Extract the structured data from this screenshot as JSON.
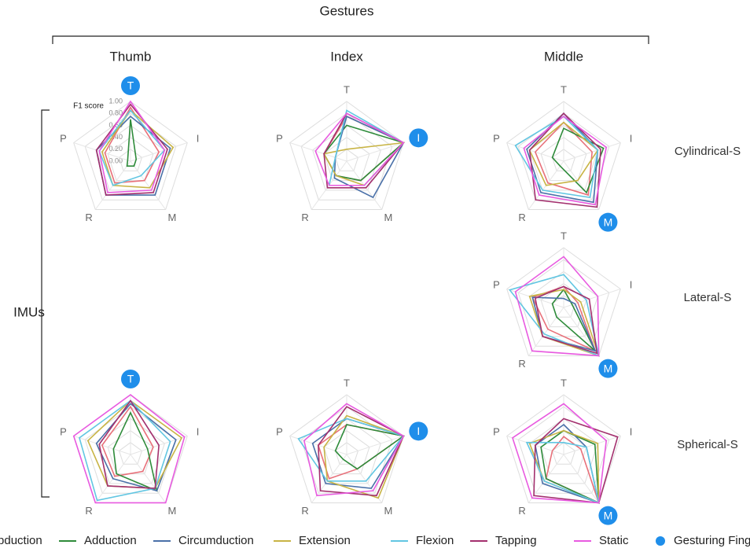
{
  "title": "Gestures",
  "group_label": "IMUs",
  "columns": [
    "Thumb",
    "Index",
    "Middle"
  ],
  "rows": [
    "Cylindrical-S",
    "Lateral-S",
    "Spherical-S"
  ],
  "legend_marker": {
    "name": "Gesturing Finger",
    "color": "#1f8eea"
  },
  "chart_data": [
    {
      "type": "radar",
      "column": "Thumb",
      "row": "Cylindrical-S",
      "axes": [
        "T",
        "I",
        "M",
        "R",
        "P"
      ],
      "gesturing_finger": "T",
      "rlim": [
        0,
        1
      ],
      "rlabel": "F1 score",
      "rticks": [
        {
          "value": 0,
          "label": "0.00"
        },
        {
          "value": 0.2,
          "label": "0.20"
        },
        {
          "value": 0.4,
          "label": "0.40"
        },
        {
          "value": 0.6,
          "label": "0.60"
        },
        {
          "value": 0.8,
          "label": "0.80"
        },
        {
          "value": 1,
          "label": "1.00"
        }
      ],
      "series": [
        {
          "name": "Abduction",
          "color": "#e8707a",
          "values": [
            0.9,
            0.5,
            0.4,
            0.45,
            0.45
          ]
        },
        {
          "name": "Adduction",
          "color": "#2e8b3a",
          "values": [
            0.7,
            0.1,
            0.1,
            0.1,
            0.05
          ]
        },
        {
          "name": "Circumduction",
          "color": "#4a70a8",
          "values": [
            0.75,
            0.7,
            0.7,
            0.7,
            0.6
          ]
        },
        {
          "name": "Extension",
          "color": "#c8b445",
          "values": [
            0.85,
            0.75,
            0.55,
            0.5,
            0.5
          ]
        },
        {
          "name": "Flexion",
          "color": "#62c6e2",
          "values": [
            0.85,
            0.6,
            0.3,
            0.5,
            0.55
          ]
        },
        {
          "name": "Tapping",
          "color": "#a3306e",
          "values": [
            0.95,
            0.65,
            0.65,
            0.7,
            0.6
          ]
        },
        {
          "name": "Static",
          "color": "#e85ae0",
          "values": [
            1.0,
            0.6,
            0.6,
            0.65,
            0.55
          ]
        }
      ]
    },
    {
      "type": "radar",
      "column": "Index",
      "row": "Cylindrical-S",
      "axes": [
        "T",
        "I",
        "M",
        "R",
        "P"
      ],
      "gesturing_finger": "I",
      "rlim": [
        0,
        1
      ],
      "rticks": [
        0,
        0.2,
        0.4,
        0.6,
        0.8,
        1
      ],
      "series": [
        {
          "name": "Abduction",
          "color": "#e8707a",
          "values": [
            0.75,
            1.0,
            0.4,
            0.3,
            0.4
          ]
        },
        {
          "name": "Adduction",
          "color": "#2e8b3a",
          "values": [
            0.6,
            1.0,
            0.4,
            0.3,
            0.4
          ]
        },
        {
          "name": "Circumduction",
          "color": "#4a70a8",
          "values": [
            0.75,
            1.0,
            0.75,
            0.35,
            0.2
          ]
        },
        {
          "name": "Extension",
          "color": "#c8b445",
          "values": [
            0.2,
            1.0,
            0.5,
            0.3,
            0.4
          ]
        },
        {
          "name": "Flexion",
          "color": "#62c6e2",
          "values": [
            0.85,
            1.0,
            0.5,
            0.5,
            0.2
          ]
        },
        {
          "name": "Tapping",
          "color": "#a3306e",
          "values": [
            0.8,
            1.0,
            0.55,
            0.55,
            0.4
          ]
        },
        {
          "name": "Static",
          "color": "#e85ae0",
          "values": [
            0.8,
            1.0,
            0.5,
            0.5,
            0.55
          ]
        }
      ]
    },
    {
      "type": "radar",
      "column": "Middle",
      "row": "Cylindrical-S",
      "axes": [
        "T",
        "I",
        "M",
        "R",
        "P"
      ],
      "gesturing_finger": "M",
      "rlim": [
        0,
        1
      ],
      "rticks": [
        0,
        0.2,
        0.4,
        0.6,
        0.8,
        1
      ],
      "series": [
        {
          "name": "Abduction",
          "color": "#e8707a",
          "values": [
            0.65,
            0.5,
            0.7,
            0.45,
            0.5
          ]
        },
        {
          "name": "Adduction",
          "color": "#2e8b3a",
          "values": [
            0.55,
            0.7,
            0.65,
            0.1,
            0.2
          ]
        },
        {
          "name": "Circumduction",
          "color": "#4a70a8",
          "values": [
            0.8,
            0.6,
            0.85,
            0.65,
            0.65
          ]
        },
        {
          "name": "Extension",
          "color": "#c8b445",
          "values": [
            0.65,
            0.6,
            0.4,
            0.5,
            0.6
          ]
        },
        {
          "name": "Flexion",
          "color": "#62c6e2",
          "values": [
            0.75,
            0.6,
            0.75,
            0.6,
            0.85
          ]
        },
        {
          "name": "Tapping",
          "color": "#a3306e",
          "values": [
            0.8,
            0.65,
            0.95,
            0.8,
            0.6
          ]
        },
        {
          "name": "Static",
          "color": "#e85ae0",
          "values": [
            0.75,
            0.75,
            0.9,
            0.7,
            0.7
          ]
        }
      ]
    },
    {
      "type": "radar",
      "column": "Middle",
      "row": "Lateral-S",
      "axes": [
        "T",
        "I",
        "M",
        "R",
        "P"
      ],
      "gesturing_finger": "M",
      "rlim": [
        0,
        1
      ],
      "rticks": [
        0,
        0.2,
        0.4,
        0.6,
        0.8,
        1
      ],
      "series": [
        {
          "name": "Abduction",
          "color": "#e8707a",
          "values": [
            0.35,
            0.25,
            0.9,
            0.45,
            0.55
          ]
        },
        {
          "name": "Adduction",
          "color": "#2e8b3a",
          "values": [
            0.3,
            0.15,
            0.9,
            0.2,
            0.2
          ]
        },
        {
          "name": "Circumduction",
          "color": "#4a70a8",
          "values": [
            0.15,
            0.2,
            0.9,
            0.6,
            0.55
          ]
        },
        {
          "name": "Extension",
          "color": "#c8b445",
          "values": [
            0.3,
            0.3,
            1.0,
            0.6,
            0.6
          ]
        },
        {
          "name": "Flexion",
          "color": "#62c6e2",
          "values": [
            0.55,
            0.4,
            1.0,
            0.55,
            0.95
          ]
        },
        {
          "name": "Tapping",
          "color": "#a3306e",
          "values": [
            0.35,
            0.45,
            0.95,
            0.6,
            0.5
          ]
        },
        {
          "name": "Static",
          "color": "#e85ae0",
          "values": [
            0.85,
            0.6,
            1.0,
            0.9,
            0.85
          ]
        }
      ]
    },
    {
      "type": "radar",
      "column": "Thumb",
      "row": "Spherical-S",
      "axes": [
        "T",
        "I",
        "M",
        "R",
        "P"
      ],
      "gesturing_finger": "T",
      "rlim": [
        0,
        1
      ],
      "rticks": [
        0,
        0.2,
        0.4,
        0.6,
        0.8,
        1
      ],
      "series": [
        {
          "name": "Abduction",
          "color": "#e8707a",
          "values": [
            0.8,
            0.4,
            0.35,
            0.45,
            0.5
          ]
        },
        {
          "name": "Adduction",
          "color": "#2e8b3a",
          "values": [
            0.7,
            0.3,
            0.75,
            0.4,
            0.3
          ]
        },
        {
          "name": "Circumduction",
          "color": "#4a70a8",
          "values": [
            0.85,
            0.8,
            0.75,
            0.5,
            0.6
          ]
        },
        {
          "name": "Extension",
          "color": "#c8b445",
          "values": [
            0.9,
            0.9,
            0.7,
            0.65,
            0.75
          ]
        },
        {
          "name": "Flexion",
          "color": "#62c6e2",
          "values": [
            0.9,
            0.7,
            0.7,
            0.95,
            0.9
          ]
        },
        {
          "name": "Tapping",
          "color": "#a3306e",
          "values": [
            0.9,
            0.5,
            0.7,
            0.65,
            0.55
          ]
        },
        {
          "name": "Static",
          "color": "#e85ae0",
          "values": [
            1.0,
            0.95,
            1.0,
            1.0,
            1.0
          ]
        }
      ]
    },
    {
      "type": "radar",
      "column": "Index",
      "row": "Spherical-S",
      "axes": [
        "T",
        "I",
        "M",
        "R",
        "P"
      ],
      "gesturing_finger": "I",
      "rlim": [
        0,
        1
      ],
      "rticks": [
        0,
        0.2,
        0.4,
        0.6,
        0.8,
        1
      ],
      "series": [
        {
          "name": "Abduction",
          "color": "#e8707a",
          "values": [
            0.5,
            1.0,
            0.3,
            0.5,
            0.5
          ]
        },
        {
          "name": "Adduction",
          "color": "#2e8b3a",
          "values": [
            0.5,
            1.0,
            0.3,
            0.1,
            0.2
          ]
        },
        {
          "name": "Circumduction",
          "color": "#4a70a8",
          "values": [
            0.6,
            1.0,
            0.7,
            0.6,
            0.6
          ]
        },
        {
          "name": "Extension",
          "color": "#c8b445",
          "values": [
            0.65,
            1.0,
            0.9,
            0.55,
            0.4
          ]
        },
        {
          "name": "Flexion",
          "color": "#62c6e2",
          "values": [
            0.6,
            1.0,
            0.55,
            0.55,
            0.85
          ]
        },
        {
          "name": "Tapping",
          "color": "#a3306e",
          "values": [
            0.8,
            1.0,
            0.85,
            0.75,
            0.5
          ]
        },
        {
          "name": "Static",
          "color": "#e85ae0",
          "values": [
            0.85,
            1.0,
            0.75,
            0.85,
            0.75
          ]
        }
      ]
    },
    {
      "type": "radar",
      "column": "Middle",
      "row": "Spherical-S",
      "axes": [
        "T",
        "I",
        "M",
        "R",
        "P"
      ],
      "gesturing_finger": "M",
      "rlim": [
        0,
        1
      ],
      "rticks": [
        0,
        0.2,
        0.4,
        0.6,
        0.8,
        1
      ],
      "series": [
        {
          "name": "Abduction",
          "color": "#e8707a",
          "values": [
            0.3,
            0.3,
            1.0,
            0.5,
            0.2
          ]
        },
        {
          "name": "Adduction",
          "color": "#2e8b3a",
          "values": [
            0.4,
            0.55,
            1.0,
            0.5,
            0.4
          ]
        },
        {
          "name": "Circumduction",
          "color": "#4a70a8",
          "values": [
            0.5,
            0.4,
            1.0,
            0.6,
            0.5
          ]
        },
        {
          "name": "Extension",
          "color": "#c8b445",
          "values": [
            0.4,
            0.6,
            1.0,
            0.55,
            0.6
          ]
        },
        {
          "name": "Flexion",
          "color": "#62c6e2",
          "values": [
            0.2,
            0.4,
            1.0,
            0.55,
            0.65
          ]
        },
        {
          "name": "Tapping",
          "color": "#a3306e",
          "values": [
            0.6,
            0.95,
            1.0,
            0.85,
            0.5
          ]
        },
        {
          "name": "Static",
          "color": "#e85ae0",
          "values": [
            0.85,
            0.75,
            1.0,
            0.9,
            0.9
          ]
        }
      ]
    }
  ]
}
